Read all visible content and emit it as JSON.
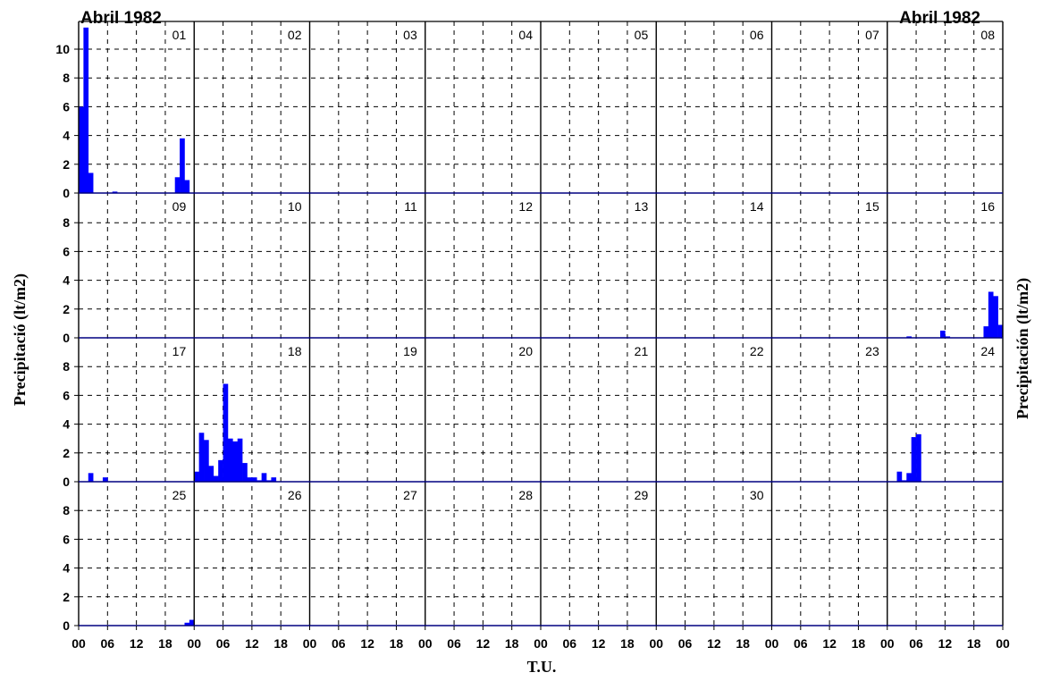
{
  "chart_data": {
    "type": "bar",
    "title_left": "Abril 1982",
    "title_right": "Abril 1982",
    "ylabel_left": "Precipitació (lt/m2)",
    "ylabel_right": "Precipitación (lt/m2)",
    "xlabel": "T.U.",
    "ylim": [
      0,
      10
    ],
    "y_ticks": [
      "0",
      "2",
      "4",
      "6",
      "8",
      "10"
    ],
    "x_ticks": [
      "00",
      "06",
      "12",
      "18",
      "00",
      "06",
      "12",
      "18",
      "00",
      "06",
      "12",
      "18",
      "00",
      "06",
      "12",
      "18",
      "00",
      "06",
      "12",
      "18",
      "00",
      "06",
      "12",
      "18",
      "00",
      "06",
      "12",
      "18",
      "00",
      "06",
      "12",
      "18",
      "00"
    ],
    "grid": "dashed",
    "bar_color": "#0000ff",
    "baseline_color": "#000080",
    "days": [
      "01",
      "02",
      "03",
      "04",
      "05",
      "06",
      "07",
      "08",
      "09",
      "10",
      "11",
      "12",
      "13",
      "14",
      "15",
      "16",
      "17",
      "18",
      "19",
      "20",
      "21",
      "22",
      "23",
      "24",
      "25",
      "26",
      "27",
      "28",
      "29",
      "30"
    ],
    "hourly_precipitation": [
      {
        "day": "01",
        "hours": [
          0,
          1,
          2,
          7,
          20,
          21,
          22
        ],
        "values": [
          6.0,
          11.5,
          1.4,
          0.1,
          1.1,
          3.8,
          0.9
        ]
      },
      {
        "day": "16",
        "hours": [
          4,
          11,
          12,
          20,
          21,
          22,
          23
        ],
        "values": [
          0.1,
          0.5,
          0.1,
          0.8,
          3.2,
          2.9,
          0.9
        ]
      },
      {
        "day": "17",
        "hours": [
          2,
          5,
          0,
          1,
          2,
          3,
          4,
          5,
          6,
          7,
          8,
          9,
          10,
          11,
          12,
          13,
          14,
          15,
          16
        ],
        "values": [
          0.6,
          0.3,
          0.7,
          3.4,
          2.9,
          1.1,
          0.4,
          1.5,
          6.8,
          3.0,
          2.8,
          3.0,
          1.3,
          0.3,
          0.3,
          0.1,
          0.6,
          0.1,
          0.3
        ]
      },
      {
        "day": "24",
        "hours": [
          2,
          3,
          4,
          5,
          6
        ],
        "values": [
          0.7,
          0.1,
          0.6,
          3.1,
          3.3
        ]
      },
      {
        "day": "25",
        "hours": [
          22,
          23
        ],
        "values": [
          0.2,
          0.4
        ]
      }
    ]
  }
}
